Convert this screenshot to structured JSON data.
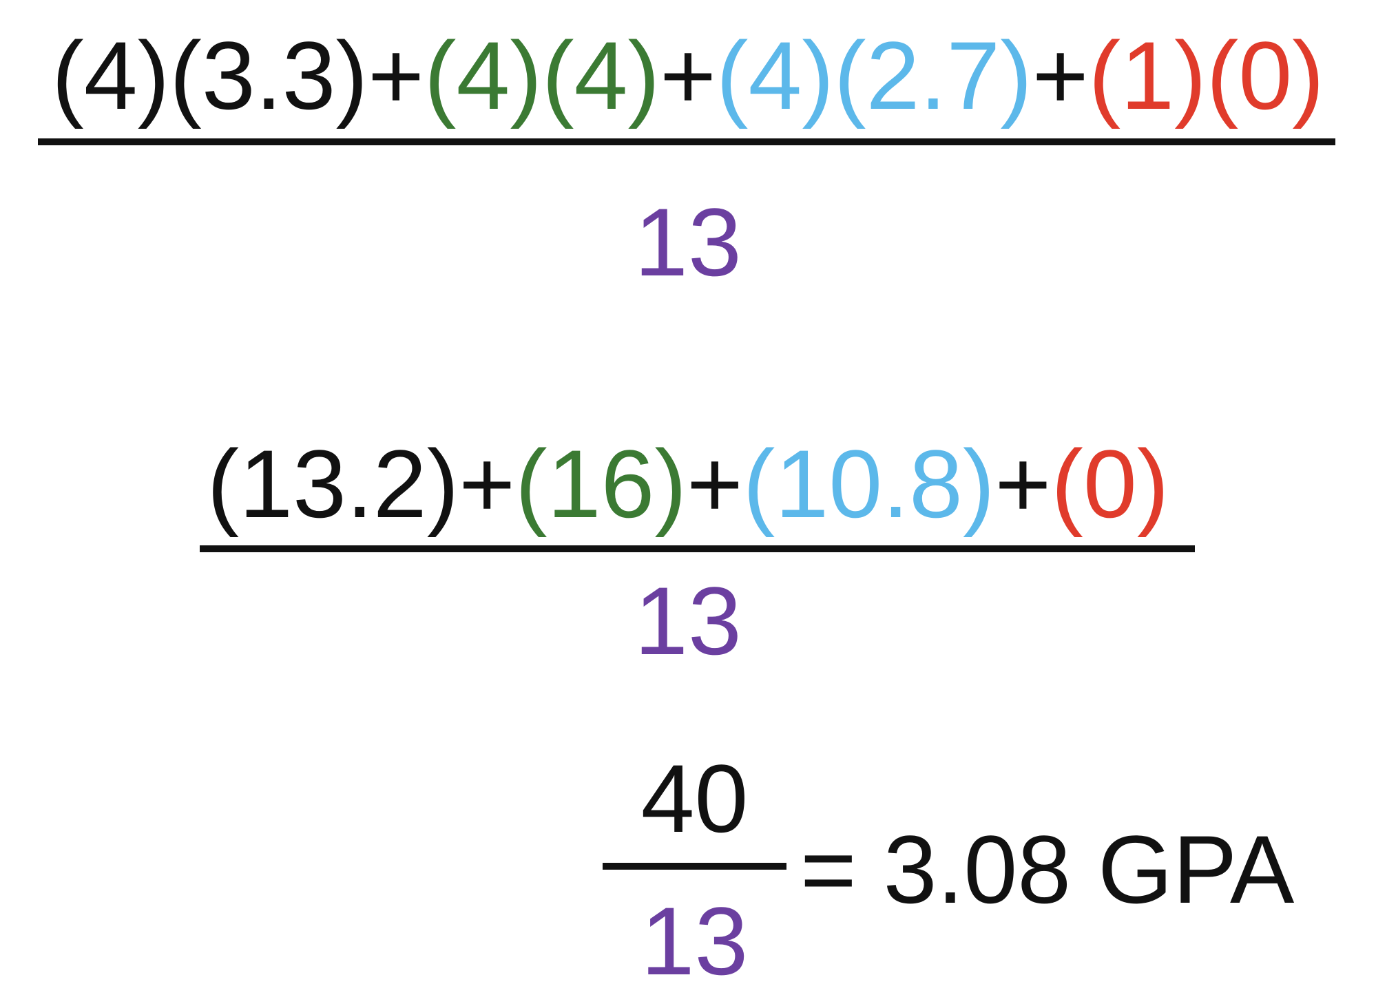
{
  "colors": {
    "black": "#111111",
    "green": "#3b7a33",
    "blue": "#5cb8ea",
    "red": "#e03b2b",
    "purple": "#6b3fa0"
  },
  "step1": {
    "numerator": [
      {
        "text": "(4)(3.3)",
        "color": "black"
      },
      {
        "text": "+",
        "color": "black"
      },
      {
        "text": "(4)(4)",
        "color": "green"
      },
      {
        "text": "+",
        "color": "black"
      },
      {
        "text": "(4)(2.7)",
        "color": "blue"
      },
      {
        "text": "+",
        "color": "black"
      },
      {
        "text": "(1)(0)",
        "color": "red"
      }
    ],
    "denominator": "13"
  },
  "step2": {
    "numerator": [
      {
        "text": "(13.2)",
        "color": "black"
      },
      {
        "text": "+",
        "color": "black"
      },
      {
        "text": "(16)",
        "color": "green"
      },
      {
        "text": "+",
        "color": "black"
      },
      {
        "text": "(10.8)",
        "color": "blue"
      },
      {
        "text": "+",
        "color": "black"
      },
      {
        "text": "(0)",
        "color": "red"
      }
    ],
    "denominator": "13"
  },
  "step3": {
    "numerator": "40",
    "denominator": "13",
    "result": "= 3.08 GPA"
  }
}
